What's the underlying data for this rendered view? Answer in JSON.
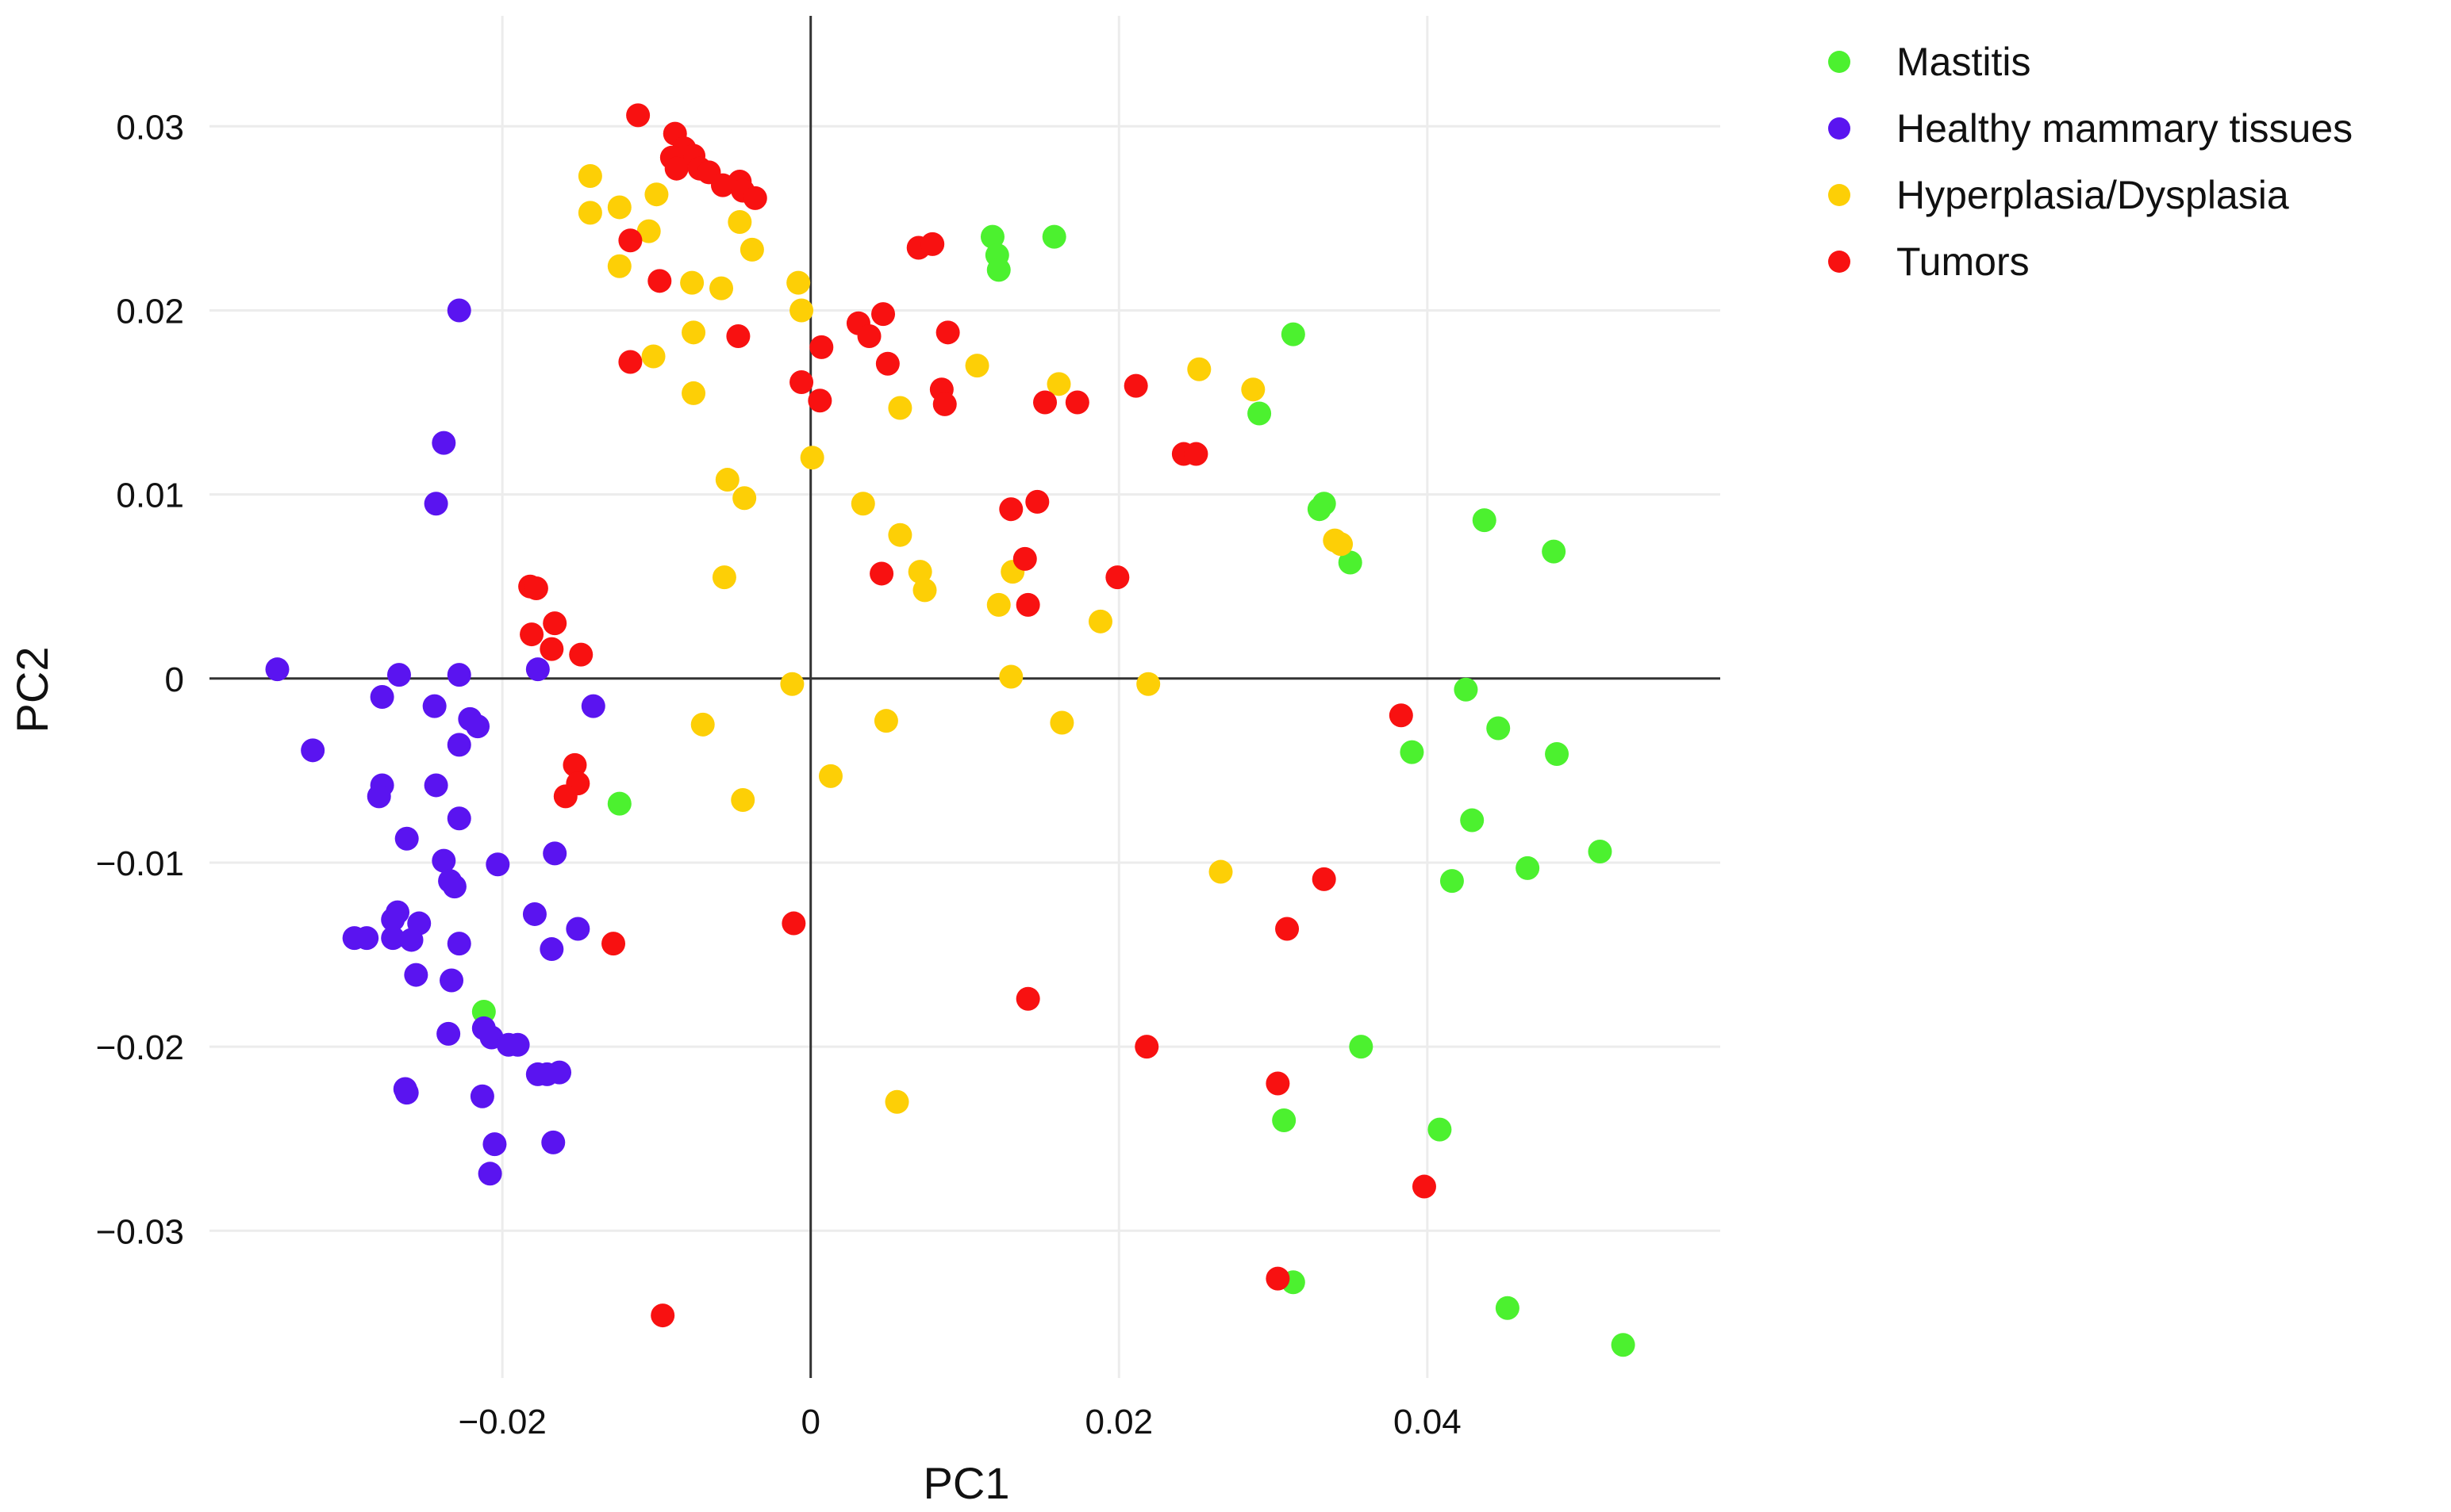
{
  "chart_data": {
    "type": "scatter",
    "title": "",
    "xlabel": "PC1",
    "ylabel": "PC2",
    "xlim": [
      -0.039,
      0.059
    ],
    "ylim": [
      -0.038,
      0.036
    ],
    "xgrid": [
      -0.02,
      0,
      0.02,
      0.04
    ],
    "ygrid": [
      -0.03,
      -0.02,
      -0.01,
      0,
      0.01,
      0.02,
      0.03
    ],
    "xticks": [
      {
        "value": -0.02,
        "label": "−0.02"
      },
      {
        "value": 0,
        "label": "0"
      },
      {
        "value": 0.02,
        "label": "0.02"
      },
      {
        "value": 0.04,
        "label": "0.04"
      }
    ],
    "yticks": [
      {
        "value": 0.03,
        "label": "0.03"
      },
      {
        "value": 0.02,
        "label": "0.02"
      },
      {
        "value": 0.01,
        "label": "0.01"
      },
      {
        "value": 0,
        "label": "0"
      },
      {
        "value": -0.01,
        "label": "−0.01"
      },
      {
        "value": -0.02,
        "label": "−0.02"
      },
      {
        "value": -0.03,
        "label": "−0.03"
      }
    ],
    "grid": true,
    "zero_lines": true,
    "legend_position": "top-right",
    "series": [
      {
        "name": "Mastitis",
        "color": "#4cf12f",
        "points": [
          [
            0.0118,
            0.024
          ],
          [
            0.0158,
            0.024
          ],
          [
            0.0121,
            0.023
          ],
          [
            0.0122,
            0.0222
          ],
          [
            0.0313,
            0.0187
          ],
          [
            0.0291,
            0.0144
          ],
          [
            0.033,
            0.0092
          ],
          [
            0.0333,
            0.0095
          ],
          [
            0.035,
            0.0063
          ],
          [
            0.0437,
            0.0086
          ],
          [
            0.0482,
            0.0069
          ],
          [
            0.0425,
            -0.0006
          ],
          [
            0.0446,
            -0.0027
          ],
          [
            0.039,
            -0.004
          ],
          [
            0.0484,
            -0.0041
          ],
          [
            0.0429,
            -0.0077
          ],
          [
            0.0512,
            -0.0094
          ],
          [
            0.0465,
            -0.0103
          ],
          [
            0.0416,
            -0.011
          ],
          [
            0.0357,
            -0.02
          ],
          [
            0.0307,
            -0.024
          ],
          [
            0.0408,
            -0.0245
          ],
          [
            0.0313,
            -0.0328
          ],
          [
            0.0452,
            -0.0342
          ],
          [
            0.0527,
            -0.0362
          ],
          [
            -0.0124,
            -0.0068
          ],
          [
            -0.0212,
            -0.0181
          ]
        ]
      },
      {
        "name": "Healthy mammary tissues",
        "color": "#5a14f0",
        "points": [
          [
            -0.0228,
            0.02
          ],
          [
            -0.0238,
            0.0128
          ],
          [
            -0.0243,
            0.0095
          ],
          [
            -0.0346,
            0.0005
          ],
          [
            -0.0267,
            0.0002
          ],
          [
            -0.0228,
            0.0002
          ],
          [
            -0.0177,
            0.0005
          ],
          [
            -0.0278,
            -0.001
          ],
          [
            -0.0244,
            -0.0015
          ],
          [
            -0.0221,
            -0.0022
          ],
          [
            -0.0216,
            -0.0026
          ],
          [
            -0.0141,
            -0.0015
          ],
          [
            -0.0228,
            -0.0036
          ],
          [
            -0.0323,
            -0.0039
          ],
          [
            -0.0278,
            -0.0058
          ],
          [
            -0.028,
            -0.0064
          ],
          [
            -0.0243,
            -0.0058
          ],
          [
            -0.0228,
            -0.0076
          ],
          [
            -0.0262,
            -0.0087
          ],
          [
            -0.0238,
            -0.0099
          ],
          [
            -0.0234,
            -0.011
          ],
          [
            -0.0231,
            -0.0113
          ],
          [
            -0.0203,
            -0.0101
          ],
          [
            -0.0166,
            -0.0095
          ],
          [
            -0.0268,
            -0.0127
          ],
          [
            -0.0271,
            -0.0131
          ],
          [
            -0.0254,
            -0.0133
          ],
          [
            -0.0296,
            -0.0141
          ],
          [
            -0.0288,
            -0.0141
          ],
          [
            -0.0271,
            -0.0141
          ],
          [
            -0.0259,
            -0.0142
          ],
          [
            -0.0228,
            -0.0144
          ],
          [
            -0.0179,
            -0.0128
          ],
          [
            -0.0168,
            -0.0147
          ],
          [
            -0.0151,
            -0.0136
          ],
          [
            -0.0256,
            -0.0161
          ],
          [
            -0.0233,
            -0.0164
          ],
          [
            -0.0212,
            -0.019
          ],
          [
            -0.0207,
            -0.0195
          ],
          [
            -0.0196,
            -0.0199
          ],
          [
            -0.019,
            -0.0199
          ],
          [
            -0.0235,
            -0.0193
          ],
          [
            -0.0263,
            -0.0223
          ],
          [
            -0.0262,
            -0.0225
          ],
          [
            -0.0213,
            -0.0227
          ],
          [
            -0.0177,
            -0.0215
          ],
          [
            -0.0171,
            -0.0215
          ],
          [
            -0.0163,
            -0.0214
          ],
          [
            -0.0205,
            -0.0253
          ],
          [
            -0.0167,
            -0.0252
          ],
          [
            -0.0208,
            -0.0269
          ]
        ]
      },
      {
        "name": "Hyperplasia/Dysplasia",
        "color": "#fdcf06",
        "points": [
          [
            -0.0143,
            0.0273
          ],
          [
            -0.0124,
            0.0256
          ],
          [
            -0.0143,
            0.0253
          ],
          [
            -0.01,
            0.0263
          ],
          [
            -0.0105,
            0.0243
          ],
          [
            -0.0124,
            0.0224
          ],
          [
            -0.0046,
            0.0248
          ],
          [
            -0.0038,
            0.0233
          ],
          [
            -0.0077,
            0.0215
          ],
          [
            -0.0058,
            0.0212
          ],
          [
            -0.0102,
            0.0175
          ],
          [
            -0.0076,
            0.0188
          ],
          [
            -0.0076,
            0.0155
          ],
          [
            -0.0054,
            0.0108
          ],
          [
            -0.0043,
            0.0098
          ],
          [
            -0.0056,
            0.0055
          ],
          [
            -0.007,
            -0.0025
          ],
          [
            -0.0044,
            -0.0066
          ],
          [
            -0.0008,
            0.0215
          ],
          [
            -0.0006,
            0.02
          ],
          [
            0.0001,
            0.012
          ],
          [
            -0.0012,
            -0.0003
          ],
          [
            0.0013,
            -0.0053
          ],
          [
            0.0034,
            0.0095
          ],
          [
            0.0058,
            0.0147
          ],
          [
            0.0058,
            0.0078
          ],
          [
            0.0071,
            0.0058
          ],
          [
            0.0074,
            0.0048
          ],
          [
            0.0049,
            -0.0023
          ],
          [
            0.0108,
            0.017
          ],
          [
            0.0122,
            0.004
          ],
          [
            0.0131,
            0.0058
          ],
          [
            0.013,
            0.0001
          ],
          [
            0.0161,
            0.016
          ],
          [
            0.0163,
            -0.0024
          ],
          [
            0.0188,
            0.0031
          ],
          [
            0.0252,
            0.0168
          ],
          [
            0.0287,
            0.0157
          ],
          [
            0.0219,
            -0.0003
          ],
          [
            0.0266,
            -0.0105
          ],
          [
            0.034,
            0.0075
          ],
          [
            0.0344,
            0.0073
          ],
          [
            0.0056,
            -0.023
          ]
        ]
      },
      {
        "name": "Tumors",
        "color": "#f81111",
        "points": [
          [
            -0.0112,
            0.0306
          ],
          [
            -0.0088,
            0.0296
          ],
          [
            -0.0082,
            0.0288
          ],
          [
            -0.0076,
            0.0284
          ],
          [
            -0.009,
            0.0283
          ],
          [
            -0.0087,
            0.0277
          ],
          [
            -0.0072,
            0.0277
          ],
          [
            -0.0066,
            0.0275
          ],
          [
            -0.0057,
            0.0268
          ],
          [
            -0.0046,
            0.027
          ],
          [
            -0.0044,
            0.0265
          ],
          [
            -0.0036,
            0.0261
          ],
          [
            -0.0117,
            0.0238
          ],
          [
            -0.0098,
            0.0216
          ],
          [
            -0.0047,
            0.0186
          ],
          [
            -0.0117,
            0.0172
          ],
          [
            0.0007,
            0.018
          ],
          [
            -0.0006,
            0.0161
          ],
          [
            0.0006,
            0.0151
          ],
          [
            0.0031,
            0.0193
          ],
          [
            0.0038,
            0.0186
          ],
          [
            0.0047,
            0.0198
          ],
          [
            0.005,
            0.0171
          ],
          [
            0.007,
            0.0234
          ],
          [
            0.0079,
            0.0236
          ],
          [
            0.0089,
            0.0188
          ],
          [
            0.0085,
            0.0157
          ],
          [
            0.0087,
            0.0149
          ],
          [
            0.0152,
            0.015
          ],
          [
            0.0173,
            0.015
          ],
          [
            0.0211,
            0.0159
          ],
          [
            0.0242,
            0.0122
          ],
          [
            0.025,
            0.0122
          ],
          [
            0.013,
            0.0092
          ],
          [
            0.0147,
            0.0096
          ],
          [
            0.0139,
            0.0065
          ],
          [
            0.0141,
            0.004
          ],
          [
            0.0046,
            0.0057
          ],
          [
            0.0199,
            0.0055
          ],
          [
            -0.0182,
            0.005
          ],
          [
            -0.0178,
            0.0049
          ],
          [
            -0.0181,
            0.0024
          ],
          [
            -0.0166,
            0.003
          ],
          [
            -0.0168,
            0.0016
          ],
          [
            -0.0149,
            0.0013
          ],
          [
            -0.0153,
            -0.0047
          ],
          [
            -0.0151,
            -0.0057
          ],
          [
            -0.0159,
            -0.0064
          ],
          [
            -0.0128,
            -0.0144
          ],
          [
            -0.0011,
            -0.0133
          ],
          [
            0.0383,
            -0.002
          ],
          [
            0.0333,
            -0.0109
          ],
          [
            0.0309,
            -0.0136
          ],
          [
            0.0141,
            -0.0174
          ],
          [
            0.0218,
            -0.02
          ],
          [
            0.0303,
            -0.022
          ],
          [
            0.0398,
            -0.0276
          ],
          [
            0.0303,
            -0.0326
          ],
          [
            -0.0096,
            -0.0346
          ]
        ]
      }
    ]
  }
}
